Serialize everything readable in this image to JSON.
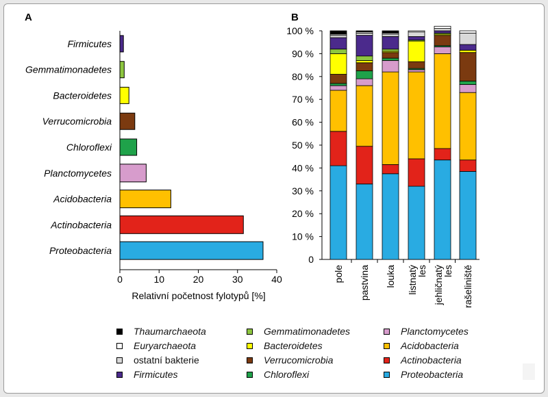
{
  "panels": {
    "a_label": "A",
    "b_label": "B"
  },
  "colors": {
    "Thaumarchaeota": "#000000",
    "Euryarchaeota": "#ffffff",
    "ostatní bakterie": "#d9d9d9",
    "Firmicutes": "#4b2a8c",
    "Gemmatimonadetes": "#8dc63f",
    "Bacteroidetes": "#ffff00",
    "Verrucomicrobia": "#7b3a10",
    "Chloroflexi": "#1fa24a",
    "Planctomycetes": "#d79ccc",
    "Acidobacteria": "#ffc000",
    "Actinobacteria": "#e2231a",
    "Proteobacteria": "#29abe2"
  },
  "chart_data": [
    {
      "type": "bar",
      "orientation": "horizontal",
      "title": "A",
      "xlabel": "Relativní početnost fylotypů [%]",
      "ylabel": "",
      "xlim": [
        0,
        40
      ],
      "xticks": [
        "0",
        "10",
        "20",
        "30",
        "40"
      ],
      "categories": [
        "Firmicutes",
        "Gemmatimonadetes",
        "Bacteroidetes",
        "Verrucomicrobia",
        "Chloroflexi",
        "Planctomycetes",
        "Acidobacteria",
        "Actinobacteria",
        "Proteobacteria"
      ],
      "values": [
        0.9,
        1.1,
        2.3,
        3.8,
        4.3,
        6.7,
        13.0,
        31.5,
        36.5
      ]
    },
    {
      "type": "bar",
      "stacked": true,
      "title": "B",
      "xlabel": "",
      "ylabel": "",
      "ylim": [
        0,
        100
      ],
      "yticks": [
        "0",
        "10 %",
        "20 %",
        "30 %",
        "40 %",
        "50 %",
        "60 %",
        "70 %",
        "80 %",
        "90 %",
        "100 %"
      ],
      "categories": [
        "pole",
        "pastvina",
        "louka",
        "listnatý les",
        "jehličnatý les",
        "rašeliniště"
      ],
      "series": [
        {
          "name": "Proteobacteria",
          "values": [
            41,
            33,
            37.5,
            32,
            43.5,
            38.5
          ]
        },
        {
          "name": "Actinobacteria",
          "values": [
            15,
            16.5,
            4,
            12,
            5,
            5
          ]
        },
        {
          "name": "Acidobacteria",
          "values": [
            18,
            26.5,
            40.5,
            38,
            41.5,
            29.5
          ]
        },
        {
          "name": "Planctomycetes",
          "values": [
            2,
            3,
            5,
            1,
            3,
            3.5
          ]
        },
        {
          "name": "Chloroflexi",
          "values": [
            1,
            3.5,
            1,
            0.5,
            0.5,
            1.5
          ]
        },
        {
          "name": "Verrucomicrobia",
          "values": [
            4,
            3.5,
            2.5,
            3,
            4.5,
            12.5
          ]
        },
        {
          "name": "Bacteroidetes",
          "values": [
            9,
            1,
            0.5,
            9,
            0.5,
            1
          ]
        },
        {
          "name": "Gemmatimonadetes",
          "values": [
            2,
            2,
            1,
            0.5,
            0.5,
            0
          ]
        },
        {
          "name": "Firmicutes",
          "values": [
            5,
            9,
            5.5,
            1.5,
            1,
            2.5
          ]
        },
        {
          "name": "ostatní bakterie",
          "values": [
            1,
            1,
            1,
            2,
            1,
            5
          ]
        },
        {
          "name": "Euryarchaeota",
          "values": [
            0.5,
            0.5,
            0.5,
            0.5,
            1,
            1
          ]
        },
        {
          "name": "Thaumarchaeota",
          "values": [
            1.5,
            0.5,
            1,
            0,
            0,
            0
          ]
        }
      ]
    }
  ],
  "legend": {
    "items": [
      {
        "label": "Thaumarchaeota",
        "italic": true
      },
      {
        "label": "Euryarchaeota",
        "italic": true
      },
      {
        "label": "ostatní bakterie",
        "italic": false
      },
      {
        "label": "Firmicutes",
        "italic": true
      },
      {
        "label": "Gemmatimonadetes",
        "italic": true
      },
      {
        "label": "Bacteroidetes",
        "italic": true
      },
      {
        "label": "Verrucomicrobia",
        "italic": true
      },
      {
        "label": "Chloroflexi",
        "italic": true
      },
      {
        "label": "Planctomycetes",
        "italic": true
      },
      {
        "label": "Acidobacteria",
        "italic": true
      },
      {
        "label": "Actinobacteria",
        "italic": true
      },
      {
        "label": "Proteobacteria",
        "italic": true
      }
    ]
  }
}
